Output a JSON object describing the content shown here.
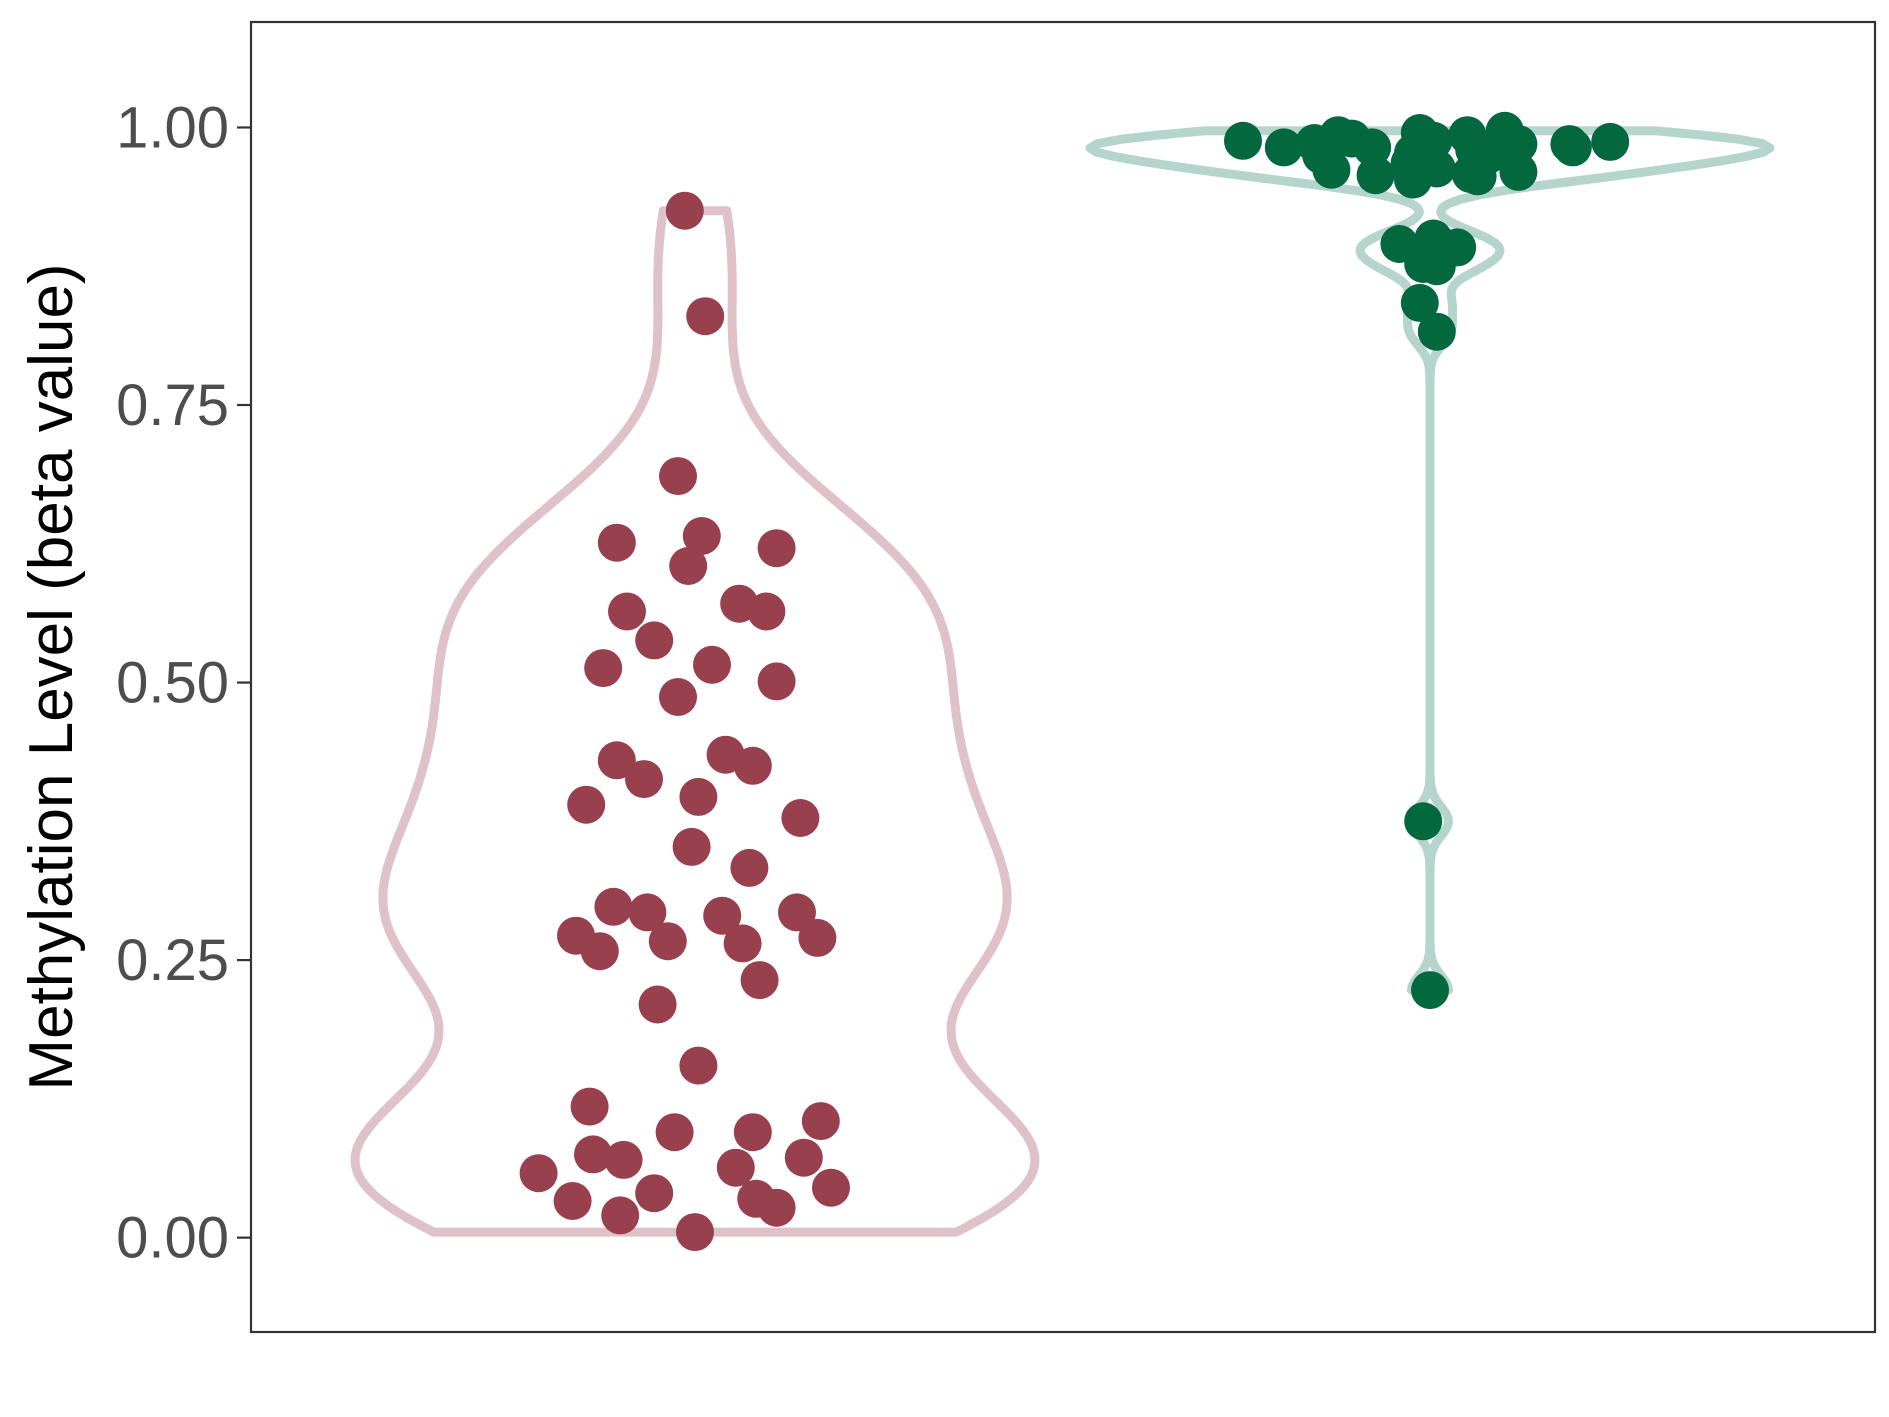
{
  "chart_data": {
    "type": "violin",
    "title": "",
    "xlabel": "",
    "ylabel": "Methylation Level (beta value)",
    "ylim": [
      -0.085,
      1.095
    ],
    "yticks": [
      0.0,
      0.25,
      0.5,
      0.75,
      1.0
    ],
    "ytick_labels": [
      "0.00",
      "0.25",
      "0.50",
      "0.75",
      "1.00"
    ],
    "grid": false,
    "legend": "none",
    "series": [
      {
        "fill_color": "#ffffff",
        "outline_color": "#dfc2c8",
        "point_color": "#99404f",
        "points": [
          {
            "x": -0.46,
            "y": 0.058
          },
          {
            "x": -0.36,
            "y": 0.033
          },
          {
            "x": -0.3,
            "y": 0.075
          },
          {
            "x": -0.21,
            "y": 0.07
          },
          {
            "x": -0.12,
            "y": 0.04
          },
          {
            "x": 0.0,
            "y": 0.005
          },
          {
            "x": 0.12,
            "y": 0.063
          },
          {
            "x": 0.18,
            "y": 0.035
          },
          {
            "x": 0.32,
            "y": 0.072
          },
          {
            "x": 0.4,
            "y": 0.045
          },
          {
            "x": -0.22,
            "y": 0.02
          },
          {
            "x": 0.24,
            "y": 0.027
          },
          {
            "x": -0.31,
            "y": 0.118
          },
          {
            "x": -0.06,
            "y": 0.095
          },
          {
            "x": 0.17,
            "y": 0.095
          },
          {
            "x": 0.37,
            "y": 0.105
          },
          {
            "x": 0.01,
            "y": 0.155
          },
          {
            "x": -0.11,
            "y": 0.21
          },
          {
            "x": 0.19,
            "y": 0.232
          },
          {
            "x": -0.35,
            "y": 0.272
          },
          {
            "x": -0.28,
            "y": 0.258
          },
          {
            "x": -0.24,
            "y": 0.298
          },
          {
            "x": -0.14,
            "y": 0.293
          },
          {
            "x": -0.08,
            "y": 0.267
          },
          {
            "x": 0.08,
            "y": 0.29
          },
          {
            "x": 0.14,
            "y": 0.265
          },
          {
            "x": 0.3,
            "y": 0.293
          },
          {
            "x": 0.36,
            "y": 0.27
          },
          {
            "x": -0.01,
            "y": 0.352
          },
          {
            "x": 0.16,
            "y": 0.333
          },
          {
            "x": 0.31,
            "y": 0.378
          },
          {
            "x": -0.32,
            "y": 0.39
          },
          {
            "x": 0.01,
            "y": 0.397
          },
          {
            "x": -0.23,
            "y": 0.43
          },
          {
            "x": -0.15,
            "y": 0.413
          },
          {
            "x": 0.09,
            "y": 0.435
          },
          {
            "x": 0.17,
            "y": 0.425
          },
          {
            "x": -0.27,
            "y": 0.513
          },
          {
            "x": -0.05,
            "y": 0.487
          },
          {
            "x": 0.05,
            "y": 0.516
          },
          {
            "x": 0.24,
            "y": 0.501
          },
          {
            "x": -0.2,
            "y": 0.564
          },
          {
            "x": -0.12,
            "y": 0.538
          },
          {
            "x": 0.13,
            "y": 0.571
          },
          {
            "x": 0.21,
            "y": 0.564
          },
          {
            "x": -0.23,
            "y": 0.626
          },
          {
            "x": -0.02,
            "y": 0.605
          },
          {
            "x": 0.02,
            "y": 0.632
          },
          {
            "x": 0.24,
            "y": 0.621
          },
          {
            "x": -0.05,
            "y": 0.686
          },
          {
            "x": 0.03,
            "y": 0.83
          },
          {
            "x": -0.03,
            "y": 0.925
          }
        ]
      },
      {
        "fill_color": "#ffffff",
        "outline_color": "#b5d5cc",
        "point_color": "#04683f",
        "points": [
          {
            "x": 0.0,
            "y": 0.223
          },
          {
            "x": -0.02,
            "y": 0.375
          },
          {
            "x": 0.02,
            "y": 0.816
          },
          {
            "x": -0.03,
            "y": 0.842
          },
          {
            "x": -0.09,
            "y": 0.895
          },
          {
            "x": 0.01,
            "y": 0.9
          },
          {
            "x": 0.08,
            "y": 0.892
          },
          {
            "x": -0.02,
            "y": 0.877
          },
          {
            "x": 0.02,
            "y": 0.875
          },
          {
            "x": -0.55,
            "y": 0.988
          },
          {
            "x": -0.43,
            "y": 0.982
          },
          {
            "x": -0.34,
            "y": 0.986
          },
          {
            "x": -0.27,
            "y": 0.993
          },
          {
            "x": -0.23,
            "y": 0.99
          },
          {
            "x": -0.17,
            "y": 0.982
          },
          {
            "x": -0.03,
            "y": 0.995
          },
          {
            "x": 0.01,
            "y": 0.988
          },
          {
            "x": 0.11,
            "y": 0.993
          },
          {
            "x": 0.22,
            "y": 0.997
          },
          {
            "x": 0.26,
            "y": 0.985
          },
          {
            "x": 0.41,
            "y": 0.985
          },
          {
            "x": 0.53,
            "y": 0.987
          },
          {
            "x": -0.32,
            "y": 0.975
          },
          {
            "x": -0.05,
            "y": 0.977
          },
          {
            "x": 0.13,
            "y": 0.98
          },
          {
            "x": 0.17,
            "y": 0.975
          },
          {
            "x": -0.06,
            "y": 0.968
          },
          {
            "x": -0.29,
            "y": 0.962
          },
          {
            "x": -0.16,
            "y": 0.957
          },
          {
            "x": -0.05,
            "y": 0.953
          },
          {
            "x": 0.02,
            "y": 0.963
          },
          {
            "x": 0.12,
            "y": 0.958
          },
          {
            "x": 0.26,
            "y": 0.96
          },
          {
            "x": 0.14,
            "y": 0.956
          },
          {
            "x": -0.03,
            "y": 0.972
          },
          {
            "x": 0.42,
            "y": 0.982
          }
        ]
      }
    ]
  }
}
